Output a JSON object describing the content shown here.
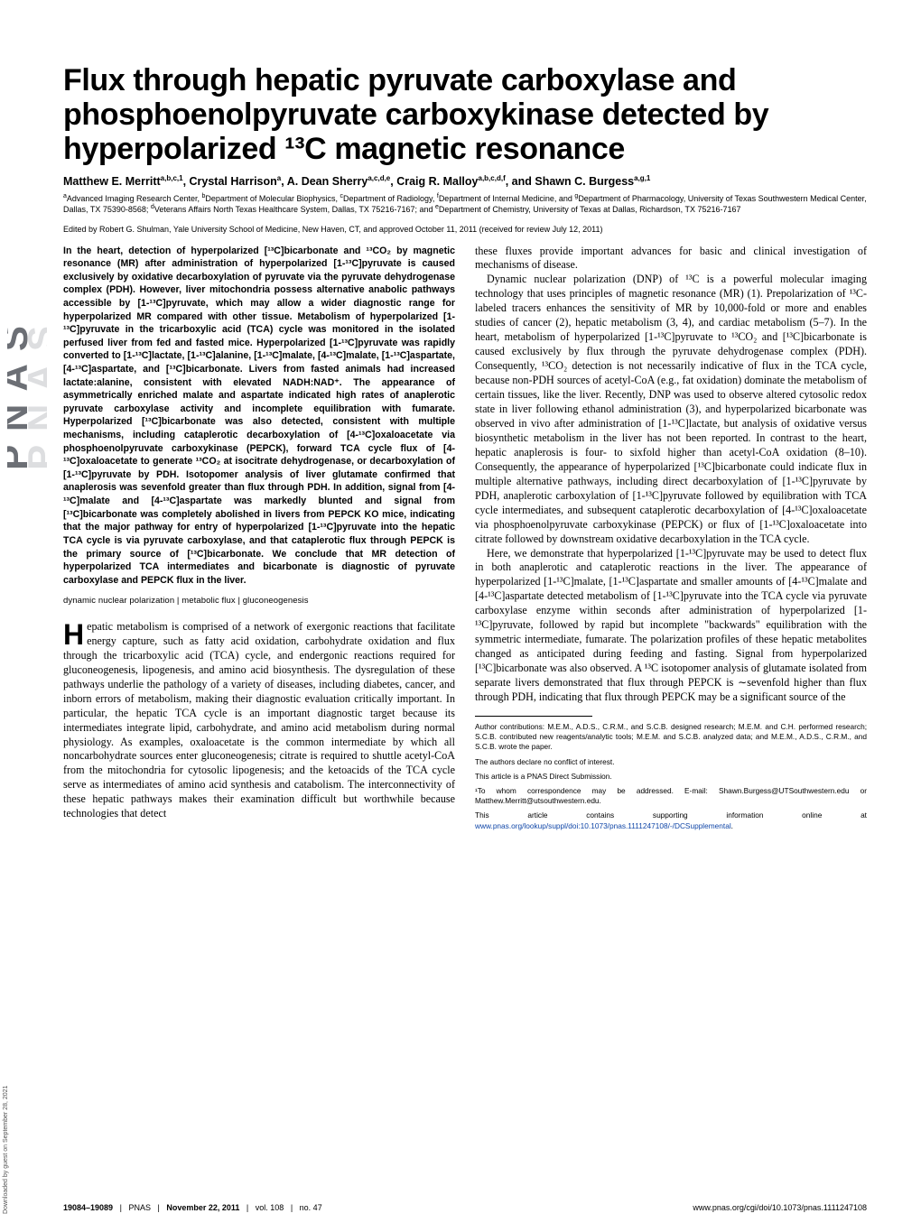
{
  "sidebar": {
    "logo_alt": "PNAS",
    "download_note": "Downloaded by guest on September 28, 2021"
  },
  "header": {
    "title": "Flux through hepatic pyruvate carboxylase and phosphoenolpyruvate carboxykinase detected by hyperpolarized ¹³C magnetic resonance",
    "authors_html": "Matthew E. Merritt<sup>a,b,c,1</sup>, Crystal Harrison<sup>a</sup>, A. Dean Sherry<sup>a,c,d,e</sup>, Craig R. Malloy<sup>a,b,c,d,f</sup>, and Shawn C. Burgess<sup>a,g,1</sup>",
    "affiliations_html": "<sup>a</sup>Advanced Imaging Research Center, <sup>b</sup>Department of Molecular Biophysics, <sup>c</sup>Department of Radiology, <sup>f</sup>Department of Internal Medicine, and <sup>g</sup>Department of Pharmacology, University of Texas Southwestern Medical Center, Dallas, TX 75390-8568; <sup>d</sup>Veterans Affairs North Texas Healthcare System, Dallas, TX 75216-7167; and <sup>e</sup>Department of Chemistry, University of Texas at Dallas, Richardson, TX 75216-7167",
    "edited": "Edited by Robert G. Shulman, Yale University School of Medicine, New Haven, CT, and approved October 11, 2011 (received for review July 12, 2011)"
  },
  "abstract": "In the heart, detection of hyperpolarized [¹³C]bicarbonate and ¹³CO₂ by magnetic resonance (MR) after administration of hyperpolarized [1-¹³C]pyruvate is caused exclusively by oxidative decarboxylation of pyruvate via the pyruvate dehydrogenase complex (PDH). However, liver mitochondria possess alternative anabolic pathways accessible by [1-¹³C]pyruvate, which may allow a wider diagnostic range for hyperpolarized MR compared with other tissue. Metabolism of hyperpolarized [1-¹³C]pyruvate in the tricarboxylic acid (TCA) cycle was monitored in the isolated perfused liver from fed and fasted mice. Hyperpolarized [1-¹³C]pyruvate was rapidly converted to [1-¹³C]lactate, [1-¹³C]alanine, [1-¹³C]malate, [4-¹³C]malate, [1-¹³C]aspartate, [4-¹³C]aspartate, and [¹³C]bicarbonate. Livers from fasted animals had increased lactate:alanine, consistent with elevated NADH:NAD⁺. The appearance of asymmetrically enriched malate and aspartate indicated high rates of anaplerotic pyruvate carboxylase activity and incomplete equilibration with fumarate. Hyperpolarized [¹³C]bicarbonate was also detected, consistent with multiple mechanisms, including cataplerotic decarboxylation of [4-¹³C]oxaloacetate via phosphoenolpyruvate carboxykinase (PEPCK), forward TCA cycle flux of [4-¹³C]oxaloacetate to generate ¹³CO₂ at isocitrate dehydrogenase, or decarboxylation of [1-¹³C]pyruvate by PDH. Isotopomer analysis of liver glutamate confirmed that anaplerosis was sevenfold greater than flux through PDH. In addition, signal from [4-¹³C]malate and [4-¹³C]aspartate was markedly blunted and signal from [¹³C]bicarbonate was completely abolished in livers from PEPCK KO mice, indicating that the major pathway for entry of hyperpolarized [1-¹³C]pyruvate into the hepatic TCA cycle is via pyruvate carboxylase, and that cataplerotic flux through PEPCK is the primary source of [¹³C]bicarbonate. We conclude that MR detection of hyperpolarized TCA intermediates and bicarbonate is diagnostic of pyruvate carboxylase and PEPCK flux in the liver.",
  "keywords": "dynamic nuclear polarization | metabolic flux | gluconeogenesis",
  "left_body": {
    "dropcap": "H",
    "p1_first": "epatic metabolism is comprised of a network of exergonic reactions that facilitate energy capture, such as fatty acid oxidation, carbohydrate oxidation and flux through the tricarboxylic acid (TCA) cycle, and endergonic reactions required for gluconeogenesis, lipogenesis, and amino acid biosynthesis. The dysregulation of these pathways underlie the pathology of a variety of diseases, including diabetes, cancer, and inborn errors of metabolism, making their diagnostic evaluation critically important. In particular, the hepatic TCA cycle is an important diagnostic target because its intermediates integrate lipid, carbohydrate, and amino acid metabolism during normal physiology. As examples, oxaloacetate is the common intermediate by which all noncarbohydrate sources enter gluconeogenesis; citrate is required to shuttle acetyl-CoA from the mitochondria for cytosolic lipogenesis; and the ketoacids of the TCA cycle serve as intermediates of amino acid synthesis and catabolism. The interconnectivity of these hepatic pathways makes their examination difficult but worthwhile because technologies that detect"
  },
  "right_body": {
    "p1": "these fluxes provide important advances for basic and clinical investigation of mechanisms of disease.",
    "p2": "Dynamic nuclear polarization (DNP) of ¹³C is a powerful molecular imaging technology that uses principles of magnetic resonance (MR) (1). Prepolarization of ¹³C-labeled tracers enhances the sensitivity of MR by 10,000-fold or more and enables studies of cancer (2), hepatic metabolism (3, 4), and cardiac metabolism (5–7). In the heart, metabolism of hyperpolarized [1-¹³C]pyruvate to ¹³CO₂ and [¹³C]bicarbonate is caused exclusively by flux through the pyruvate dehydrogenase complex (PDH). Consequently, ¹³CO₂ detection is not necessarily indicative of flux in the TCA cycle, because non-PDH sources of acetyl-CoA (e.g., fat oxidation) dominate the metabolism of certain tissues, like the liver. Recently, DNP was used to observe altered cytosolic redox state in liver following ethanol administration (3), and hyperpolarized bicarbonate was observed in vivo after administration of [1-¹³C]lactate, but analysis of oxidative versus biosynthetic metabolism in the liver has not been reported. In contrast to the heart, hepatic anaplerosis is four- to sixfold higher than acetyl-CoA oxidation (8–10). Consequently, the appearance of hyperpolarized [¹³C]bicarbonate could indicate flux in multiple alternative pathways, including direct decarboxylation of [1-¹³C]pyruvate by PDH, anaplerotic carboxylation of [1-¹³C]pyruvate followed by equilibration with TCA cycle intermediates, and subsequent cataplerotic decarboxylation of [4-¹³C]oxaloacetate via phosphoenolpyruvate carboxykinase (PEPCK) or flux of [1-¹³C]oxaloacetate into citrate followed by downstream oxidative decarboxylation in the TCA cycle.",
    "p3": "Here, we demonstrate that hyperpolarized [1-¹³C]pyruvate may be used to detect flux in both anaplerotic and cataplerotic reactions in the liver. The appearance of hyperpolarized [1-¹³C]malate, [1-¹³C]aspartate and smaller amounts of [4-¹³C]malate and [4-¹³C]aspartate detected metabolism of [1-¹³C]pyruvate into the TCA cycle via pyruvate carboxylase enzyme within seconds after administration of hyperpolarized [1-¹³C]pyruvate, followed by rapid but incomplete \"backwards\" equilibration with the symmetric intermediate, fumarate. The polarization profiles of these hepatic metabolites changed as anticipated during feeding and fasting. Signal from hyperpolarized [¹³C]bicarbonate was also observed. A ¹³C isotopomer analysis of glutamate isolated from separate livers demonstrated that flux through PEPCK is ∼sevenfold higher than flux through PDH, indicating that flux through PEPCK may be a significant source of the"
  },
  "footnotes": {
    "contrib": "Author contributions: M.E.M., A.D.S., C.R.M., and S.C.B. designed research; M.E.M. and C.H. performed research; S.C.B. contributed new reagents/analytic tools; M.E.M. and S.C.B. analyzed data; and M.E.M., A.D.S., C.R.M., and S.C.B. wrote the paper.",
    "conflict": "The authors declare no conflict of interest.",
    "direct": "This article is a PNAS Direct Submission.",
    "corr": "¹To whom correspondence may be addressed. E-mail: Shawn.Burgess@UTSouthwestern.edu or Matthew.Merritt@utsouthwestern.edu.",
    "si_prefix": "This article contains supporting information online at ",
    "si_link": "www.pnas.org/lookup/suppl/doi:10.1073/pnas.1111247108/-/DCSupplemental",
    "si_suffix": "."
  },
  "footer": {
    "pages": "19084–19089",
    "journal": "PNAS",
    "date": "November 22, 2011",
    "vol": "vol. 108",
    "no": "no. 47",
    "doi": "www.pnas.org/cgi/doi/10.1073/pnas.1111247108"
  },
  "style": {
    "link_color": "#1046a7",
    "pnas_fill": "#6c6f75"
  }
}
